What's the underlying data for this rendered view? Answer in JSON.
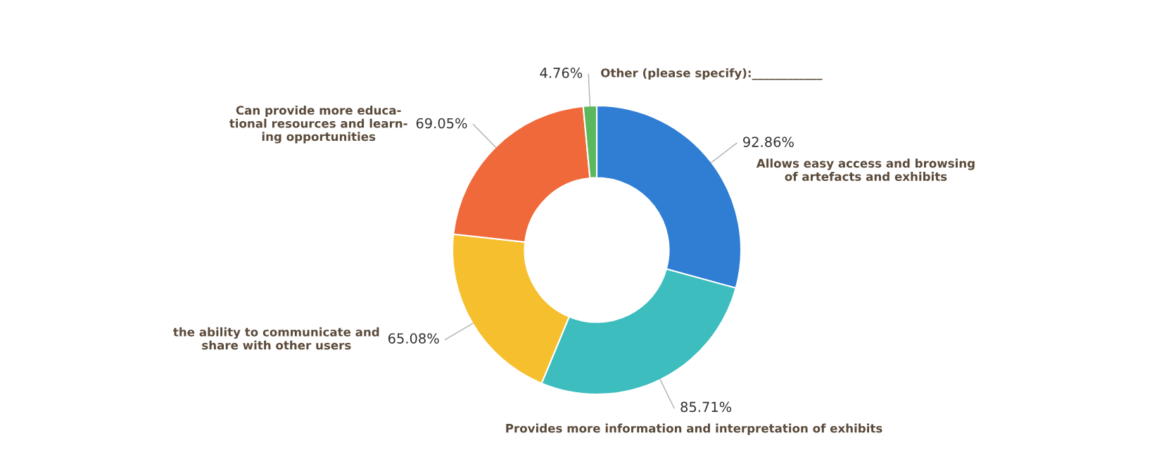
{
  "chart_data": {
    "type": "donut",
    "categories": [
      "Allows easy access and browsing\nof artefacts and exhibits",
      "Provides more information and interpretation of exhibits",
      "the ability to communicate and\nshare with other users",
      "Can provide more educa-\ntional resources and learn-\ning opportunities",
      "Other (please specify):____________"
    ],
    "values": [
      92.86,
      85.71,
      65.08,
      69.05,
      4.76
    ],
    "colors": [
      "#2f7ed4",
      "#3dbdbd",
      "#f6bf2e",
      "#f0693b",
      "#5cb85c"
    ],
    "value_labels": [
      "92.86%",
      "85.71%",
      "65.08%",
      "69.05%",
      "4.76%"
    ]
  }
}
